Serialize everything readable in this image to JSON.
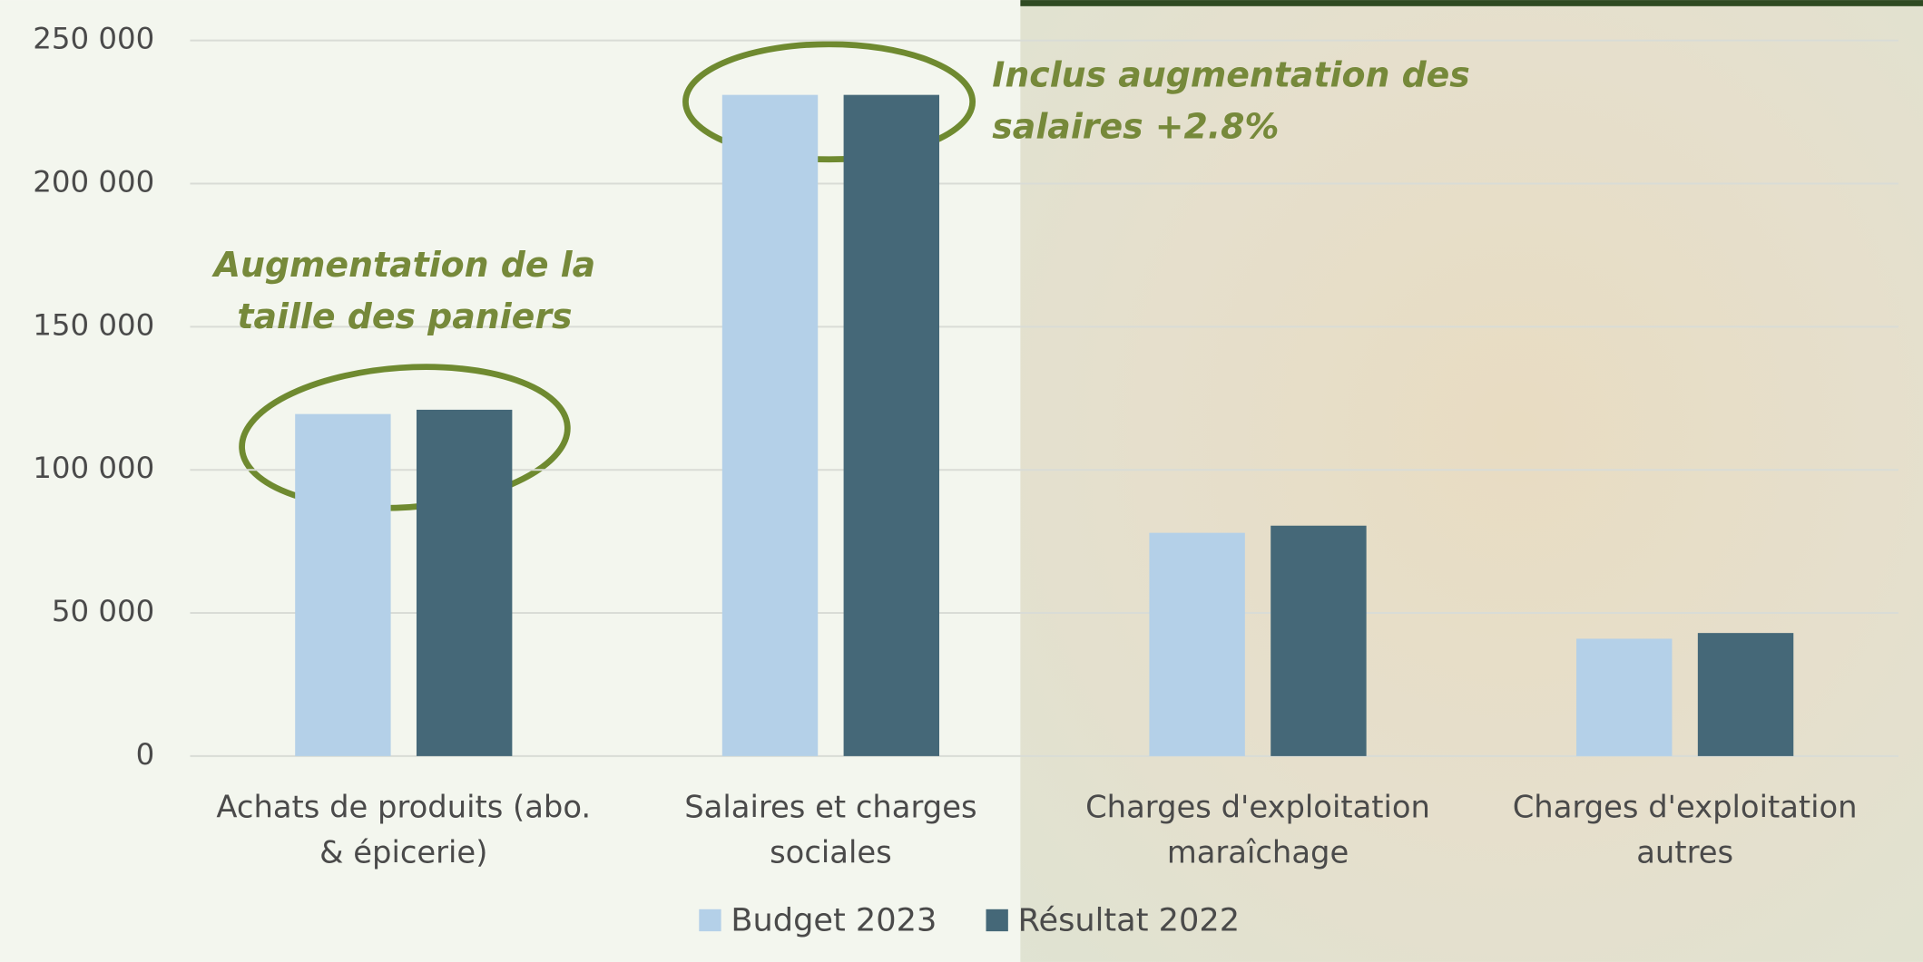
{
  "chart_data": {
    "type": "bar",
    "categories": [
      [
        "Achats de produits (abo.",
        "& épicerie)"
      ],
      [
        "Salaires et charges",
        "sociales"
      ],
      [
        "Charges d'exploitation",
        "maraîchage"
      ],
      [
        "Charges d'exploitation",
        "autres"
      ]
    ],
    "series": [
      {
        "name": "Budget 2023",
        "color": "#b4d0e8",
        "values": [
          119500,
          231000,
          78000,
          41000
        ]
      },
      {
        "name": "Résultat 2022",
        "color": "#456878",
        "values": [
          121000,
          231000,
          80500,
          43000
        ]
      }
    ],
    "ylim": [
      0,
      250000
    ],
    "yticks": [
      0,
      {
        "value": 50000,
        "label": "50 000"
      },
      {
        "value": 100000,
        "label": "100 000"
      },
      {
        "value": 150000,
        "label": "150 000"
      },
      {
        "value": 200000,
        "label": "200 000"
      },
      {
        "value": 250000,
        "label": "250 000"
      }
    ],
    "grid": true,
    "legend": "bottom",
    "annotations": [
      {
        "lines": [
          "Augmentation de la",
          "taille des paniers"
        ]
      },
      {
        "lines": [
          "Inclus augmentation des",
          "salaires +2.8%"
        ]
      }
    ]
  }
}
